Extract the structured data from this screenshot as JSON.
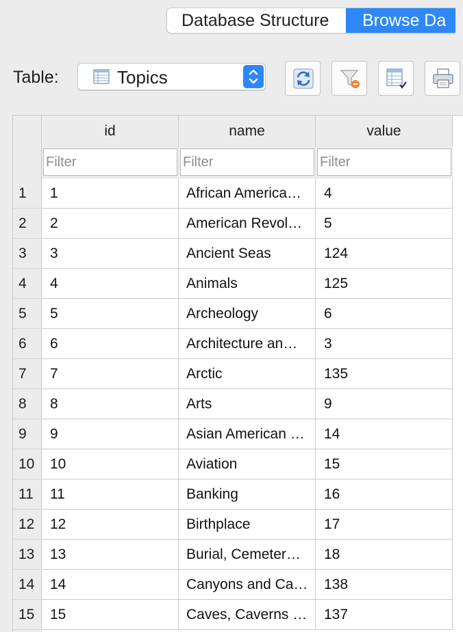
{
  "tabs": [
    {
      "label": "Database Structure",
      "active": false
    },
    {
      "label": "Browse Da",
      "active": true
    }
  ],
  "toolbar": {
    "table_label": "Table:",
    "table_select_value": "Topics",
    "buttons": [
      {
        "name": "refresh-button",
        "icon": "refresh-icon"
      },
      {
        "name": "clear-filters-button",
        "icon": "funnel-clear-icon"
      },
      {
        "name": "save-table-button",
        "icon": "table-save-icon"
      },
      {
        "name": "print-button",
        "icon": "printer-icon"
      }
    ]
  },
  "grid": {
    "columns": [
      "id",
      "name",
      "value"
    ],
    "filter_placeholder": "Filter",
    "rows": [
      {
        "num": "1",
        "id": "1",
        "name": "African America…",
        "value": "4"
      },
      {
        "num": "2",
        "id": "2",
        "name": "American Revol…",
        "value": "5"
      },
      {
        "num": "3",
        "id": "3",
        "name": "Ancient Seas",
        "value": "124"
      },
      {
        "num": "4",
        "id": "4",
        "name": "Animals",
        "value": "125"
      },
      {
        "num": "5",
        "id": "5",
        "name": "Archeology",
        "value": "6"
      },
      {
        "num": "6",
        "id": "6",
        "name": "Architecture an…",
        "value": "3"
      },
      {
        "num": "7",
        "id": "7",
        "name": "Arctic",
        "value": "135"
      },
      {
        "num": "8",
        "id": "8",
        "name": "Arts",
        "value": "9"
      },
      {
        "num": "9",
        "id": "9",
        "name": "Asian American …",
        "value": "14"
      },
      {
        "num": "10",
        "id": "10",
        "name": "Aviation",
        "value": "15"
      },
      {
        "num": "11",
        "id": "11",
        "name": "Banking",
        "value": "16"
      },
      {
        "num": "12",
        "id": "12",
        "name": "Birthplace",
        "value": "17"
      },
      {
        "num": "13",
        "id": "13",
        "name": "Burial, Cemeter…",
        "value": "18"
      },
      {
        "num": "14",
        "id": "14",
        "name": "Canyons and Ca…",
        "value": "138"
      },
      {
        "num": "15",
        "id": "15",
        "name": "Caves, Caverns …",
        "value": "137"
      }
    ]
  },
  "colors": {
    "accent": "#2e87f5",
    "background": "#ececec",
    "grid_line": "#c9c9c9"
  }
}
